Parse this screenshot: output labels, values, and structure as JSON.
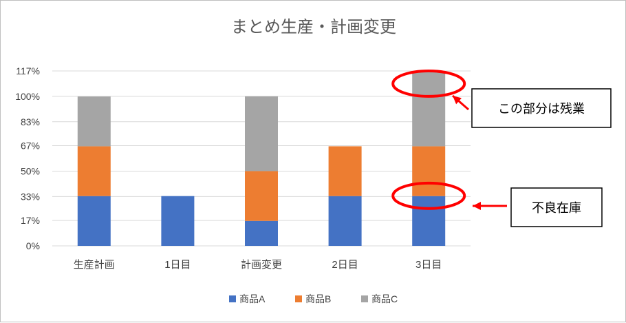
{
  "chart_data": {
    "type": "bar",
    "stacked": true,
    "title": "まとめ生産・計画変更",
    "categories": [
      "生産計画",
      "1日目",
      "計画変更",
      "2日目",
      "3日目"
    ],
    "series": [
      {
        "name": "商品A",
        "color": "#4472C4",
        "values": [
          33.3,
          33.3,
          16.7,
          33.3,
          33.3
        ]
      },
      {
        "name": "商品B",
        "color": "#ED7D31",
        "values": [
          33.3,
          0,
          33.3,
          33.3,
          33.3
        ]
      },
      {
        "name": "商品C",
        "color": "#A5A5A5",
        "values": [
          33.3,
          0,
          50.0,
          0,
          50.0
        ]
      }
    ],
    "ylim": [
      0,
      117
    ],
    "yticks": [
      0,
      17,
      33,
      50,
      67,
      83,
      100,
      117
    ],
    "ytick_labels": [
      "0%",
      "17%",
      "33%",
      "50%",
      "67%",
      "83%",
      "100%",
      "117%"
    ],
    "grid": true,
    "legend": "bottom",
    "annotations": [
      {
        "text": "この部分は残業",
        "category": "3日目",
        "y_from": 100,
        "y_to": 117
      },
      {
        "text": "不良在庫",
        "category": "3日目",
        "y_from": 25,
        "y_to": 42
      }
    ],
    "annotation_color": "#FF0000"
  }
}
